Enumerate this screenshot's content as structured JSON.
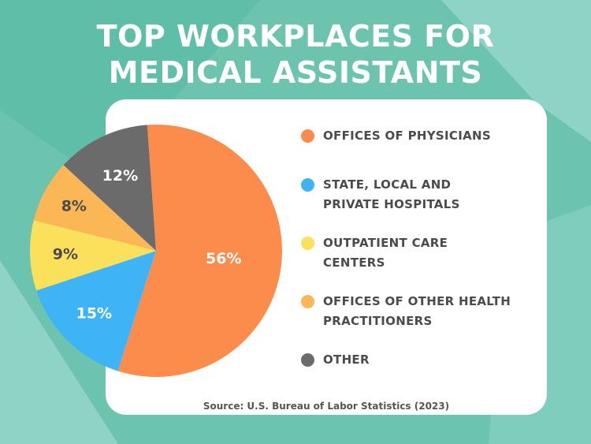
{
  "chart_data": {
    "type": "pie",
    "title_lines": [
      "TOP WORKPLACES FOR",
      "MEDICAL ASSISTANTS"
    ],
    "slices": [
      {
        "name": "OFFICES OF PHYSICIANS",
        "legend_lines": [
          "OFFICES OF PHYSICIANS"
        ],
        "value": 56,
        "label": "56%",
        "color": "#fb8c4c",
        "label_color": "#ffffff"
      },
      {
        "name": "STATE, LOCAL AND PRIVATE HOSPITALS",
        "legend_lines": [
          "STATE, LOCAL AND",
          "PRIVATE HOSPITALS"
        ],
        "value": 15,
        "label": "15%",
        "color": "#3eb3f5",
        "label_color": "#ffffff"
      },
      {
        "name": "OUTPATIENT CARE CENTERS",
        "legend_lines": [
          "OUTPATIENT CARE",
          "CENTERS"
        ],
        "value": 9,
        "label": "9%",
        "color": "#fbe05c",
        "label_color": "#4b4b4b"
      },
      {
        "name": "OFFICES OF OTHER HEALTH PRACTITIONERS",
        "legend_lines": [
          "OFFICES OF OTHER HEALTH",
          "PRACTITIONERS"
        ],
        "value": 8,
        "label": "8%",
        "color": "#fbb655",
        "label_color": "#4b4b4b"
      },
      {
        "name": "OTHER",
        "legend_lines": [
          "OTHER"
        ],
        "value": 12,
        "label": "12%",
        "color": "#6b6b6b",
        "label_color": "#ffffff"
      }
    ],
    "source": "Source: U.S. Bureau of Labor Statistics (2023)"
  },
  "colors": {
    "background": "#6cc4ae",
    "background_light": "#8ed3c6",
    "card": "#ffffff",
    "title": "#ffffff",
    "legend_text": "#4b4b4b"
  }
}
